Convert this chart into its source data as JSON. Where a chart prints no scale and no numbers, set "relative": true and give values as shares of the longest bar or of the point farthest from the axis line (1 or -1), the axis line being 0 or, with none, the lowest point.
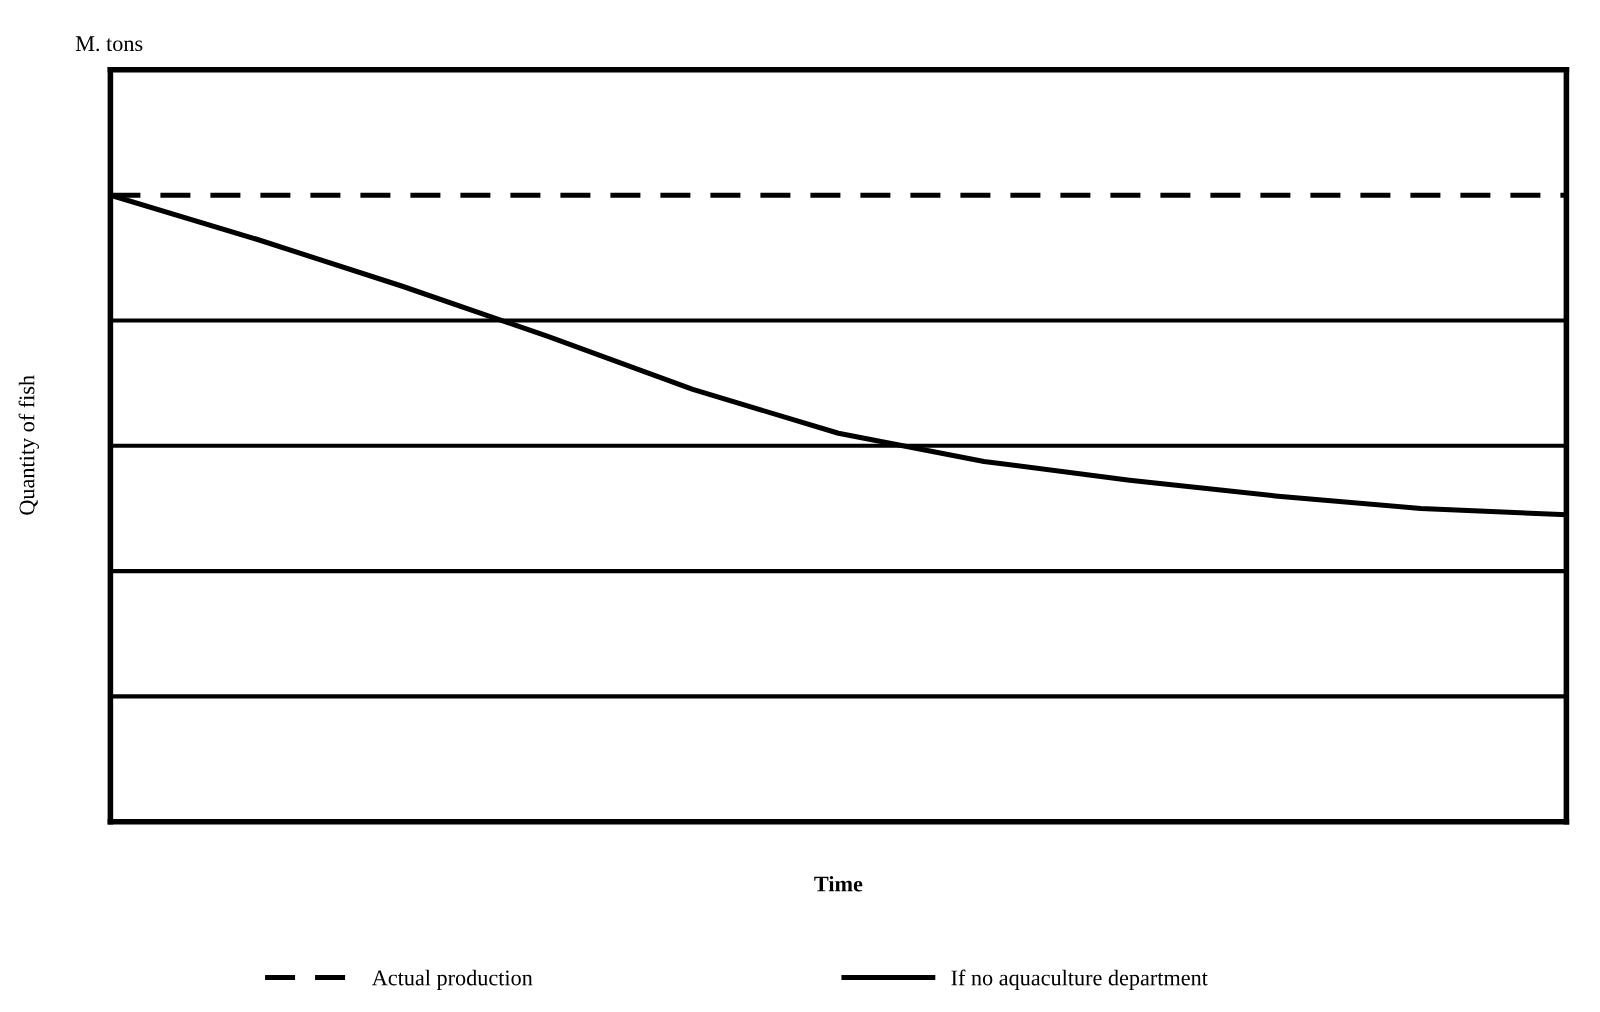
{
  "chart_data": {
    "type": "line",
    "title": "M. tons",
    "xlabel": "Time",
    "ylabel": "Quantity of fish",
    "categories": [
      null,
      null,
      null,
      null,
      null,
      null,
      null,
      null,
      null,
      null,
      null
    ],
    "relative": true,
    "grid": "y",
    "legend": "bottom",
    "series": [
      {
        "name": "Actual production",
        "color": "#000000",
        "line_style": "dashed",
        "values": [
          1,
          1,
          1,
          1,
          1,
          1,
          1,
          1,
          1,
          1,
          1
        ]
      },
      {
        "name": "If no aquaculture department",
        "color": "#000000",
        "line_style": "solid",
        "values": [
          1,
          0.93,
          0.855,
          0.775,
          0.69,
          0.62,
          0.575,
          0.545,
          0.52,
          0.5,
          0.49
        ]
      }
    ]
  }
}
